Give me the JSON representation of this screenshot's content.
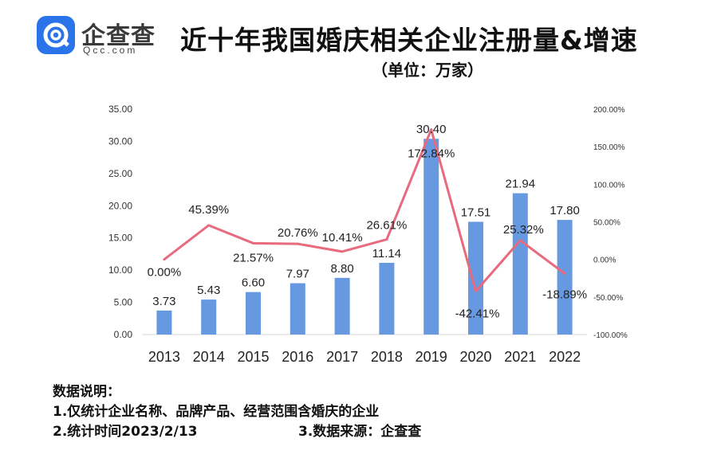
{
  "logo": {
    "name": "企查查",
    "sub": "Qcc.com"
  },
  "title": "近十年我国婚庆相关企业注册量&增速",
  "subtitle": "（单位：万家）",
  "notes": {
    "heading": "数据说明：",
    "line1": "1.仅统计企业名称、品牌产品、经营范围含婚庆的企业",
    "line2": "2.统计时间2023/2/13",
    "line3": "3.数据来源：企查查"
  },
  "colors": {
    "bar": "#6699e0",
    "line": "#e86a7e",
    "axis": "#d9d9d9"
  },
  "chart_data": {
    "type": "bar",
    "categories": [
      "2013",
      "2014",
      "2015",
      "2016",
      "2017",
      "2018",
      "2019",
      "2020",
      "2021",
      "2022"
    ],
    "series": [
      {
        "values": [
          3.73,
          5.43,
          6.6,
          7.97,
          8.8,
          11.14,
          30.4,
          17.51,
          21.94,
          17.8
        ],
        "labels": [
          "3.73",
          "5.43",
          "6.60",
          "7.97",
          "8.80",
          "11.14",
          "30.40",
          "17.51",
          "21.94",
          "17.80"
        ]
      },
      {
        "type": "line",
        "axis": "right",
        "values": [
          0.0,
          45.39,
          21.57,
          20.76,
          10.41,
          26.61,
          172.84,
          -42.41,
          25.32,
          -18.89
        ],
        "labels": [
          "0.00%",
          "45.39%",
          "21.57%",
          "20.76%",
          "10.41%",
          "26.61%",
          "172.84%",
          "-42.41%",
          "25.32%",
          "-18.89%"
        ]
      }
    ],
    "ylim": [
      0,
      35
    ],
    "yticks": [
      "0.00",
      "5.00",
      "10.00",
      "15.00",
      "20.00",
      "25.00",
      "30.00",
      "35.00"
    ],
    "y2lim": [
      -100,
      200
    ],
    "y2ticks": [
      "-100.00%",
      "-50.00%",
      "0.00%",
      "50.00%",
      "100.00%",
      "150.00%",
      "200.00%"
    ]
  }
}
